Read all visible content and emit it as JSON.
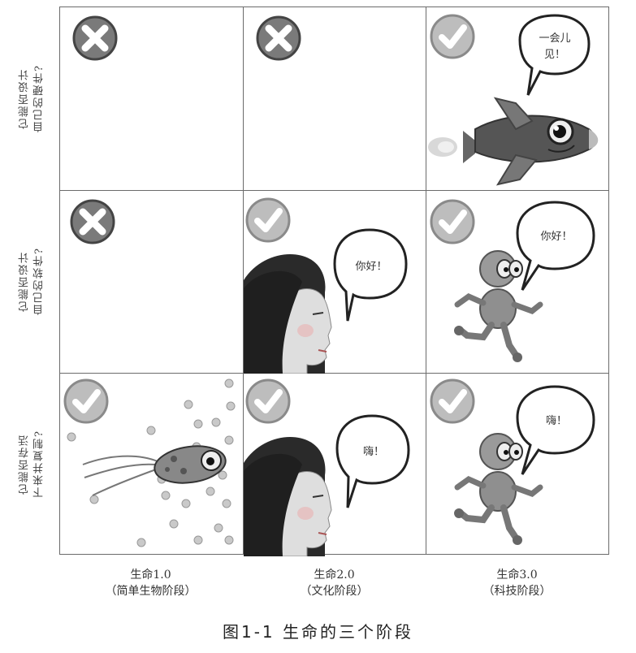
{
  "rows": [
    {
      "label": "它能否设计\n自己的硬件?"
    },
    {
      "label": "它能否设计\n自己的软件?"
    },
    {
      "label": "它能否存活\n下来并复制?"
    }
  ],
  "columns": [
    {
      "line1": "生命1.0",
      "line2": "（简单生物阶段）"
    },
    {
      "line1": "生命2.0",
      "line2": "（文化阶段）"
    },
    {
      "line1": "生命3.0",
      "line2": "（科技阶段）"
    }
  ],
  "cells": {
    "r1c3": {
      "mark": "check",
      "speech": [
        "一会儿",
        "见！"
      ]
    },
    "r2c2": {
      "mark": "check",
      "speech": [
        "你好！"
      ]
    },
    "r2c3": {
      "mark": "check",
      "speech": [
        "你好！"
      ]
    },
    "r3c2": {
      "mark": "check",
      "speech": [
        "嗨！"
      ]
    },
    "r3c3": {
      "mark": "check",
      "speech": [
        "嗨！"
      ]
    }
  },
  "marks": {
    "r1c1": "cross",
    "r1c2": "cross",
    "r1c3": "check",
    "r2c1": "cross",
    "r2c2": "check",
    "r2c3": "check",
    "r3c1": "check",
    "r3c2": "check",
    "r3c3": "check"
  },
  "caption": "图1-1  生命的三个阶段"
}
